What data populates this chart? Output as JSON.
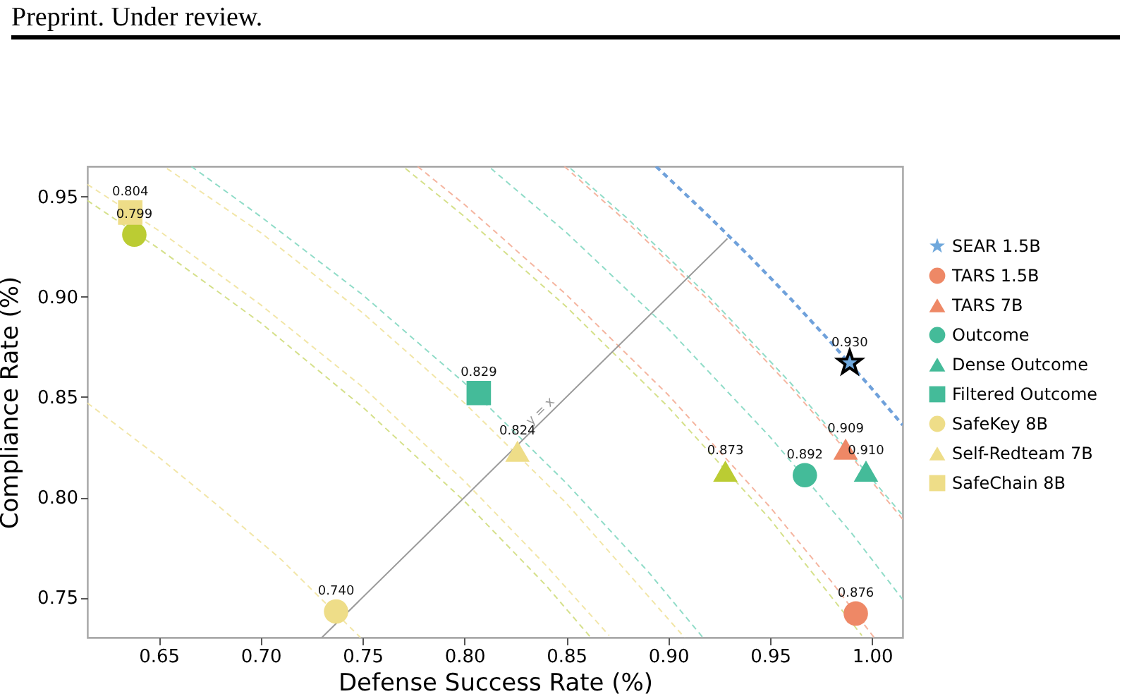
{
  "chart_data": {
    "type": "scatter",
    "xlabel": "Defense Success Rate (%)",
    "ylabel": "Compliance Rate (%)",
    "xlim": [
      0.615,
      1.015
    ],
    "ylim": [
      0.73,
      0.965
    ],
    "xticks": [
      0.65,
      {
        "value": 0.7,
        "label": "0.70"
      },
      0.75,
      {
        "value": 0.8,
        "label": "0.80"
      },
      0.85,
      {
        "value": 0.9,
        "label": "0.90"
      },
      0.95,
      {
        "value": 1.0,
        "label": "1.00"
      }
    ],
    "yticks": [
      0.75,
      {
        "value": 0.8,
        "label": "0.80"
      },
      0.85,
      {
        "value": 0.9,
        "label": "0.90"
      },
      0.95
    ],
    "legend": "right",
    "annotations": [
      "Preprint. Under review.",
      {
        "text": "0.930",
        "x": 0.989,
        "y": 0.867
      },
      {
        "text": "0.876",
        "x": 0.992,
        "y": 0.742
      },
      {
        "text": "0.909",
        "x": 0.987,
        "y": 0.824
      },
      {
        "text": "0.892",
        "x": 0.967,
        "y": 0.811
      },
      {
        "text": "0.910",
        "x": 0.997,
        "y": 0.813
      },
      {
        "text": "0.829",
        "x": 0.807,
        "y": 0.852
      },
      {
        "text": "0.799",
        "x": 0.638,
        "y": 0.931
      },
      {
        "text": "0.873",
        "x": 0.928,
        "y": 0.813
      },
      {
        "text": "0.740",
        "x": 0.737,
        "y": 0.743
      },
      {
        "text": "0.824",
        "x": 0.826,
        "y": 0.823
      },
      {
        "text": "0.804",
        "x": 0.636,
        "y": 0.942
      },
      {
        "text": "y = x",
        "x": 0.84,
        "y": 0.84
      }
    ],
    "series": [
      {
        "type": "line",
        "line_style": "dashed",
        "color": "#6fa1db",
        "x": [
          0.894,
          0.92,
          0.94,
          0.96,
          0.98,
          1.0,
          1.015
        ],
        "values": [
          0.965,
          0.94,
          0.92,
          0.899,
          0.877,
          0.854,
          0.836
        ]
      },
      {
        "type": "line",
        "line_style": "dashed",
        "color": "#f5b5a0",
        "x": [
          0.777,
          0.8,
          0.85,
          0.9,
          0.95,
          0.98,
          1.001
        ],
        "values": [
          0.965,
          0.946,
          0.901,
          0.851,
          0.795,
          0.758,
          0.73
        ]
      },
      {
        "type": "line",
        "line_style": "dashed",
        "color": "#f5b5a0",
        "x": [
          0.849,
          0.88,
          0.92,
          0.96,
          0.99,
          1.015
        ],
        "values": [
          0.965,
          0.937,
          0.898,
          0.855,
          0.82,
          0.789
        ]
      },
      {
        "type": "line",
        "line_style": "dashed",
        "color": "#90dcc8",
        "x": [
          0.813,
          0.85,
          0.9,
          0.95,
          0.99,
          1.015
        ],
        "values": [
          0.964,
          0.932,
          0.884,
          0.83,
          0.782,
          0.749
        ]
      },
      {
        "type": "line",
        "line_style": "dashed",
        "color": "#90dcc8",
        "x": [
          0.852,
          0.88,
          0.92,
          0.96,
          1.015
        ],
        "values": [
          0.964,
          0.939,
          0.9,
          0.857,
          0.791
        ]
      },
      {
        "type": "line",
        "line_style": "dashed",
        "color": "#90dcc8",
        "x": [
          0.666,
          0.7,
          0.75,
          0.8,
          0.85,
          0.89,
          0.917
        ],
        "values": [
          0.965,
          0.94,
          0.901,
          0.857,
          0.807,
          0.763,
          0.73
        ]
      },
      {
        "type": "line",
        "line_style": "dashed",
        "color": "#d5e08a",
        "x": [
          0.615,
          0.65,
          0.7,
          0.75,
          0.8,
          0.84,
          0.862
        ],
        "values": [
          0.948,
          0.924,
          0.887,
          0.845,
          0.798,
          0.756,
          0.73
        ]
      },
      {
        "type": "line",
        "line_style": "dashed",
        "color": "#d5e08a",
        "x": [
          0.771,
          0.8,
          0.85,
          0.9,
          0.95,
          0.995
        ],
        "values": [
          0.964,
          0.94,
          0.895,
          0.845,
          0.789,
          0.731
        ]
      },
      {
        "type": "line",
        "line_style": "dashed",
        "color": "#f2e6a8",
        "x": [
          0.615,
          0.65,
          0.68,
          0.71,
          0.749
        ],
        "values": [
          0.847,
          0.82,
          0.795,
          0.769,
          0.73
        ]
      },
      {
        "type": "line",
        "line_style": "dashed",
        "color": "#f2e6a8",
        "x": [
          0.654,
          0.7,
          0.75,
          0.8,
          0.85,
          0.908
        ],
        "values": [
          0.964,
          0.932,
          0.892,
          0.847,
          0.797,
          0.73
        ]
      },
      {
        "type": "line",
        "line_style": "dashed",
        "color": "#f2e6a8",
        "x": [
          0.615,
          0.65,
          0.7,
          0.75,
          0.8,
          0.84,
          0.871
        ],
        "values": [
          0.956,
          0.933,
          0.896,
          0.855,
          0.808,
          0.766,
          0.731
        ]
      },
      {
        "type": "line",
        "line_style": "solid",
        "color": "#9a9a9a",
        "x": [
          0.73,
          0.929
        ],
        "values": [
          0.73,
          0.929
        ]
      },
      {
        "name": "SEAR 1.5B",
        "marker": "star",
        "color": "#6fa8dc",
        "x": [
          0.989
        ],
        "values": [
          0.867
        ]
      },
      {
        "name": "TARS 1.5B",
        "marker": "circle",
        "color": "#ee8866",
        "x": [
          0.992
        ],
        "values": [
          0.742
        ]
      },
      {
        "name": "TARS 7B",
        "marker": "triangle",
        "color": "#ee8866",
        "x": [
          0.987
        ],
        "values": [
          0.824
        ]
      },
      {
        "name": "Outcome",
        "marker": "circle",
        "color": "#44bb99",
        "x": [
          0.967
        ],
        "values": [
          0.811
        ]
      },
      {
        "name": "Dense Outcome",
        "marker": "triangle",
        "color": "#44bb99",
        "x": [
          0.997
        ],
        "values": [
          0.813
        ]
      },
      {
        "name": "Filtered Outcome",
        "marker": "square",
        "color": "#44bb99",
        "x": [
          0.807
        ],
        "values": [
          0.852
        ]
      },
      {
        "marker": "circle",
        "color": "#bbcc33",
        "x": [
          0.638
        ],
        "values": [
          0.931
        ]
      },
      {
        "marker": "triangle",
        "color": "#bbcc33",
        "x": [
          0.928
        ],
        "values": [
          0.813
        ]
      },
      {
        "name": "SafeKey 8B",
        "marker": "circle",
        "color": "#eedd88",
        "x": [
          0.737
        ],
        "values": [
          0.743
        ]
      },
      {
        "name": "Self-Redteam 7B",
        "marker": "triangle",
        "color": "#eedd88",
        "x": [
          0.826
        ],
        "values": [
          0.823
        ]
      },
      {
        "name": "SafeChain 8B",
        "marker": "square",
        "color": "#eedd88",
        "x": [
          0.636
        ],
        "values": [
          0.942
        ]
      }
    ]
  }
}
